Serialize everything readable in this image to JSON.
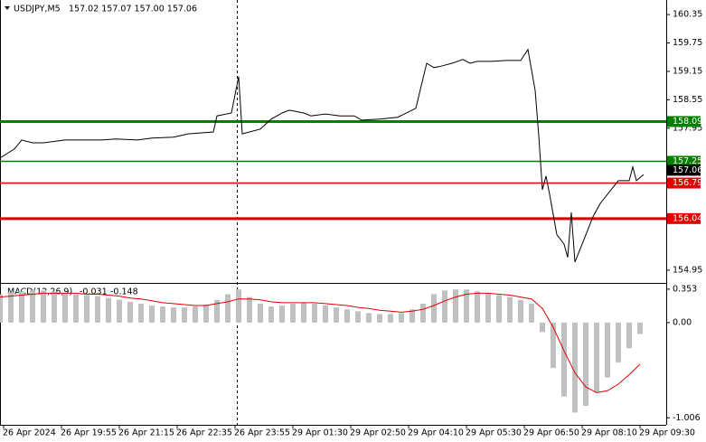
{
  "chart_data": [
    {
      "type": "line",
      "title": "USDJPY,M5",
      "subtitle": "157.02 157.07 157.00 157.06",
      "color": "#000000",
      "xlim": [
        0,
        184
      ],
      "xticks": [
        {
          "value": 1,
          "label": "26 Apr 2024"
        },
        {
          "value": 17,
          "label": "26 Apr 19:55"
        },
        {
          "value": 33,
          "label": "26 Apr 21:15"
        },
        {
          "value": 49,
          "label": "26 Apr 22:35"
        },
        {
          "value": 65,
          "label": "26 Apr 23:55"
        },
        {
          "value": 81,
          "label": "29 Apr 01:30"
        },
        {
          "value": 97,
          "label": "29 Apr 02:50"
        },
        {
          "value": 113,
          "label": "29 Apr 04:10"
        },
        {
          "value": 129,
          "label": "29 Apr 05:30"
        },
        {
          "value": 145,
          "label": "29 Apr 06:50"
        },
        {
          "value": 161,
          "label": "29 Apr 08:10"
        },
        {
          "value": 177,
          "label": "29 Apr 09:30"
        }
      ],
      "ylim": [
        154.7,
        160.6
      ],
      "yticks": [
        160.35,
        159.75,
        159.15,
        158.55,
        157.95,
        154.95
      ],
      "x": [
        0,
        4,
        6,
        9,
        12,
        18,
        22,
        28,
        32,
        38,
        42,
        48,
        52,
        59,
        60,
        64,
        66,
        67,
        69,
        72,
        75,
        78,
        80,
        84,
        86,
        90,
        94,
        98,
        100,
        105,
        110,
        115,
        118,
        120,
        122,
        125,
        128,
        130,
        132,
        136,
        140,
        144,
        146,
        148,
        149,
        150,
        151,
        152,
        154,
        156,
        157,
        158,
        159,
        161,
        164,
        166,
        169,
        171,
        174,
        175,
        176,
        178
      ],
      "values": [
        157.32,
        157.51,
        157.7,
        157.64,
        157.64,
        157.7,
        157.7,
        157.7,
        157.72,
        157.7,
        157.74,
        157.76,
        157.83,
        157.87,
        158.21,
        158.27,
        159.04,
        157.83,
        157.87,
        157.93,
        158.14,
        158.27,
        158.33,
        158.27,
        158.21,
        158.25,
        158.21,
        158.21,
        158.12,
        158.14,
        158.18,
        158.37,
        159.32,
        159.23,
        159.26,
        159.32,
        159.4,
        159.32,
        159.36,
        159.36,
        159.38,
        159.38,
        159.61,
        158.75,
        157.79,
        156.65,
        156.94,
        156.55,
        155.7,
        155.5,
        155.22,
        156.17,
        155.12,
        155.5,
        156.08,
        156.36,
        156.65,
        156.84,
        156.84,
        157.13,
        156.84,
        156.97
      ],
      "levels": [
        {
          "value": 158.09,
          "color": "#008000",
          "width": 3
        },
        {
          "value": 157.25,
          "color": "#008000",
          "width": 1.5
        },
        {
          "value": 156.79,
          "color": "#e00000",
          "width": 1.5
        },
        {
          "value": 156.04,
          "color": "#e00000",
          "width": 3
        }
      ],
      "last_price": 157.06
    },
    {
      "type": "macd",
      "title": "MACD(12,26,9)",
      "current": [
        -0.031,
        -0.148
      ],
      "xlim": [
        0,
        184
      ],
      "ylim": [
        -1.08,
        0.4
      ],
      "yticks": [
        0.353,
        {
          "value": 0,
          "label": "0.00"
        },
        -1.006
      ],
      "x": [
        0,
        3,
        6,
        9,
        12,
        15,
        18,
        21,
        24,
        27,
        30,
        33,
        36,
        39,
        42,
        45,
        48,
        51,
        54,
        57,
        60,
        63,
        66,
        69,
        72,
        75,
        78,
        81,
        84,
        87,
        90,
        93,
        96,
        99,
        102,
        105,
        108,
        111,
        114,
        117,
        120,
        123,
        126,
        129,
        132,
        135,
        138,
        141,
        144,
        147,
        150,
        153,
        156,
        159,
        162,
        165,
        168,
        171,
        174,
        177
      ],
      "series": [
        {
          "type": "bar",
          "color": "#c0c0c0",
          "values": [
            0.3,
            0.32,
            0.33,
            0.34,
            0.34,
            0.33,
            0.31,
            0.3,
            0.29,
            0.28,
            0.26,
            0.24,
            0.22,
            0.2,
            0.18,
            0.17,
            0.16,
            0.16,
            0.17,
            0.19,
            0.24,
            0.3,
            0.35,
            0.27,
            0.2,
            0.17,
            0.18,
            0.2,
            0.21,
            0.2,
            0.18,
            0.16,
            0.14,
            0.12,
            0.1,
            0.09,
            0.09,
            0.1,
            0.14,
            0.2,
            0.3,
            0.34,
            0.35,
            0.35,
            0.33,
            0.31,
            0.29,
            0.27,
            0.24,
            0.2,
            -0.1,
            -0.48,
            -0.78,
            -0.95,
            -0.88,
            -0.74,
            -0.58,
            -0.42,
            -0.27,
            -0.12
          ]
        },
        {
          "type": "line",
          "color": "#e00000",
          "values": [
            0.27,
            0.28,
            0.29,
            0.3,
            0.31,
            0.31,
            0.31,
            0.31,
            0.3,
            0.3,
            0.29,
            0.28,
            0.26,
            0.25,
            0.23,
            0.21,
            0.2,
            0.19,
            0.18,
            0.18,
            0.2,
            0.22,
            0.25,
            0.25,
            0.24,
            0.22,
            0.21,
            0.21,
            0.21,
            0.21,
            0.2,
            0.19,
            0.18,
            0.16,
            0.15,
            0.13,
            0.12,
            0.11,
            0.12,
            0.14,
            0.18,
            0.23,
            0.27,
            0.3,
            0.31,
            0.31,
            0.3,
            0.29,
            0.27,
            0.25,
            0.15,
            -0.05,
            -0.3,
            -0.53,
            -0.68,
            -0.74,
            -0.72,
            -0.65,
            -0.55,
            -0.44
          ]
        }
      ]
    }
  ]
}
